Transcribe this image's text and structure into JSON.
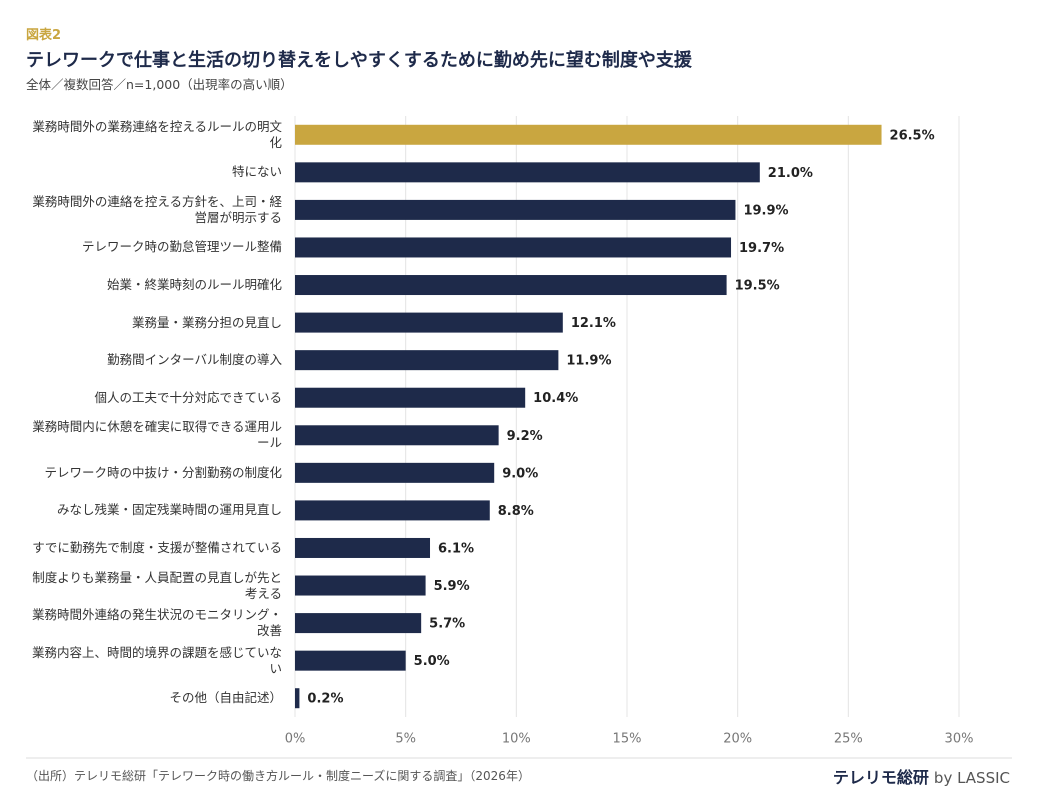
{
  "header": {
    "label": "図表2",
    "title": "テレワークで仕事と生活の切り替えをしやすくするために勤め先に望む制度や支援",
    "subtitle": "全体／複数回答／n=1,000（出現率の高い順）"
  },
  "chart_data": {
    "type": "hbar",
    "categories": [
      "業務時間外の業務連絡を控えるルールの明文化",
      "特にない",
      "業務時間外の連絡を控える方針を、上司・経営層が明示する",
      "テレワーク時の勤怠管理ツール整備",
      "始業・終業時刻のルール明確化",
      "業務量・業務分担の見直し",
      "勤務間インターバル制度の導入",
      "個人の工夫で十分対応できている",
      "業務時間内に休憩を確実に取得できる運用ルール",
      "テレワーク時の中抜け・分割勤務の制度化",
      "みなし残業・固定残業時間の運用見直し",
      "すでに勤務先で制度・支援が整備されている",
      "制度よりも業務量・人員配置の見直しが先と考える",
      "業務時間外連絡の発生状況のモニタリング・改善",
      "業務内容上、時間的境界の課題を感じていない",
      "その他（自由記述）"
    ],
    "values": [
      26.5,
      21.0,
      19.9,
      19.7,
      19.5,
      12.1,
      11.9,
      10.4,
      9.2,
      9.0,
      8.8,
      6.1,
      5.9,
      5.7,
      5.0,
      0.2
    ],
    "value_labels": [
      "26.5%",
      "21.0%",
      "19.9%",
      "19.7%",
      "19.5%",
      "12.1%",
      "11.9%",
      "10.4%",
      "9.2%",
      "9.0%",
      "8.8%",
      "6.1%",
      "5.9%",
      "5.7%",
      "5.0%",
      "0.2%"
    ],
    "colors": [
      "#c9a640",
      "#1e2a4a",
      "#1e2a4a",
      "#1e2a4a",
      "#1e2a4a",
      "#1e2a4a",
      "#1e2a4a",
      "#1e2a4a",
      "#1e2a4a",
      "#1e2a4a",
      "#1e2a4a",
      "#1e2a4a",
      "#1e2a4a",
      "#1e2a4a",
      "#1e2a4a",
      "#1e2a4a"
    ],
    "xlim": [
      0,
      30
    ],
    "xticks": [
      {
        "value": 0,
        "label": "0%"
      },
      {
        "value": 5,
        "label": "5%"
      },
      {
        "value": 10,
        "label": "10%"
      },
      {
        "value": 15,
        "label": "15%"
      },
      {
        "value": 20,
        "label": "20%"
      },
      {
        "value": 25,
        "label": "25%"
      },
      {
        "value": 30,
        "label": "30%"
      }
    ],
    "grid": true
  },
  "footer": {
    "source": "（出所）テレリモ総研「テレワーク時の働き方ルール・制度ニーズに関する調査」（2026年）",
    "brand": "テレリモ総研",
    "brand_suffix": "by LASSIC"
  }
}
